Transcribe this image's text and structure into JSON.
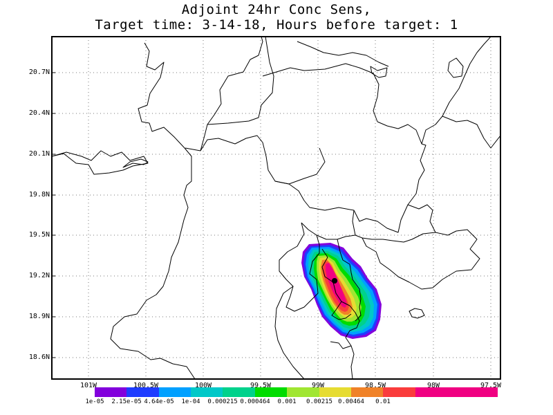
{
  "title_line1": "Adjoint 24hr Conc Sens,",
  "title_line2": "Target time: 3-14-18, Hours before target: 1",
  "y_axis_labels": [
    "20.7N",
    "20.4N",
    "20.1N",
    "19.8N",
    "19.5N",
    "19.2N",
    "18.9N",
    "18.6N"
  ],
  "x_axis_labels": [
    "101W",
    "100.5W",
    "100W",
    "99.5W",
    "99W",
    "98.5W",
    "98W",
    "97.5W"
  ],
  "colorbar": {
    "labels": [
      "1e-05",
      "2.15e-05",
      "4.64e-05",
      "1e-04",
      "0.000215",
      "0.000464",
      "0.001",
      "0.00215",
      "0.00464",
      "0.01"
    ],
    "colors": [
      "#8200dc",
      "#1e3cff",
      "#00a0ff",
      "#00c8c8",
      "#00d28c",
      "#00dc00",
      "#a0e632",
      "#e6dc32",
      "#f08228",
      "#fa3c3c",
      "#f00082"
    ]
  },
  "marker": {
    "lon_w": 98.8,
    "lat_n": 19.16
  }
}
